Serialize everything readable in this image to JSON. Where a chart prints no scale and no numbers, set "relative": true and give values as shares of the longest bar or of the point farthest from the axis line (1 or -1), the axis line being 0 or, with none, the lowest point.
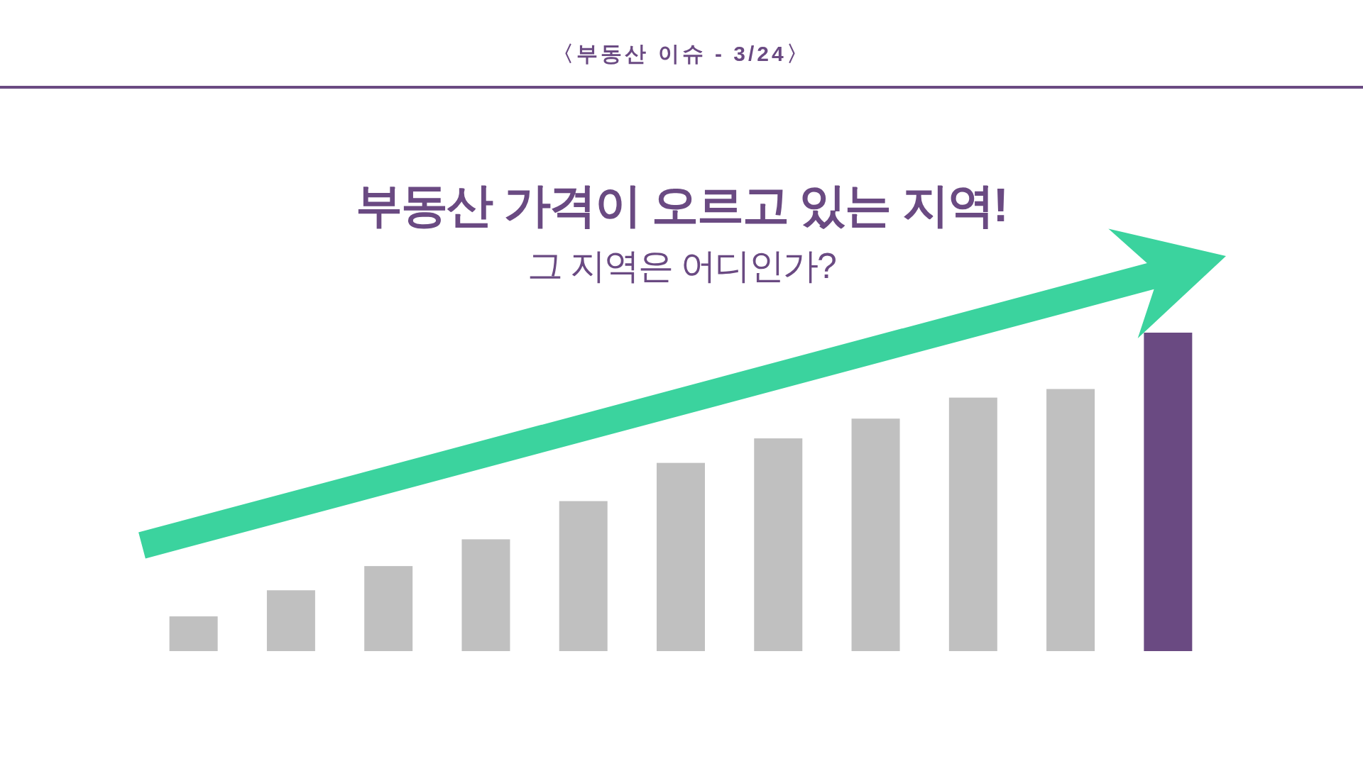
{
  "chart_data": {
    "type": "bar",
    "relative": true,
    "title": "부동산 가격이 오르고 있는 지역!",
    "subtitle": "그 지역은 어디인가?",
    "annotations": [
      "〈부동산 이슈 - 3/24〉"
    ],
    "categories": [
      null,
      null,
      null,
      null,
      null,
      null,
      null,
      null,
      null,
      null,
      null
    ],
    "values": [
      0.109,
      0.191,
      0.267,
      0.351,
      0.471,
      0.591,
      0.668,
      0.73,
      0.796,
      0.823,
      1
    ],
    "colors": [
      "#c0c0c0",
      "#c0c0c0",
      "#c0c0c0",
      "#c0c0c0",
      "#c0c0c0",
      "#c0c0c0",
      "#c0c0c0",
      "#c0c0c0",
      "#c0c0c0",
      "#c0c0c0",
      "#6a4a82"
    ]
  }
}
